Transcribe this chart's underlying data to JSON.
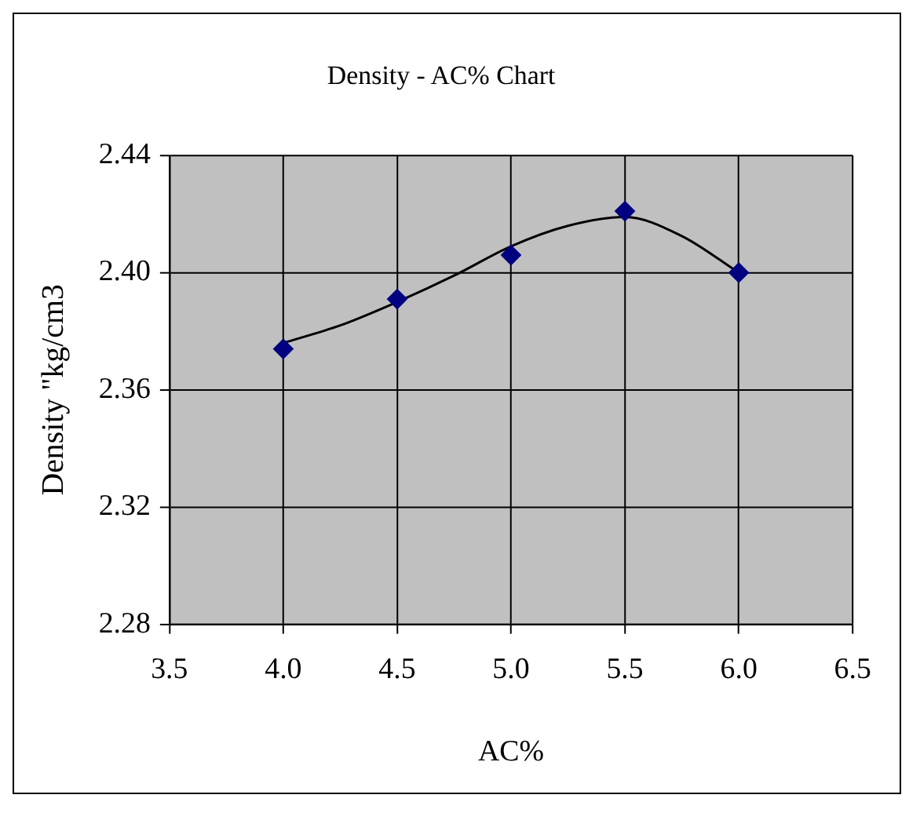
{
  "chart_data": {
    "type": "scatter",
    "title": "Density - AC% Chart",
    "xlabel": "AC%",
    "ylabel": "Density \"kg/cm3",
    "xlim": [
      3.5,
      6.5
    ],
    "xticks": [
      3.5,
      {
        "value": 4,
        "label": "4.0"
      },
      4.5,
      {
        "value": 5,
        "label": "5.0"
      },
      5.5,
      {
        "value": 6,
        "label": "6.0"
      },
      6.5
    ],
    "ylim": [
      2.28,
      2.44
    ],
    "yticks": [
      2.28,
      2.32,
      2.36,
      {
        "value": 2.4,
        "label": "2.40"
      },
      2.44
    ],
    "grid": true,
    "legend": false,
    "marker": "diamond",
    "series": [
      {
        "type": "scatter",
        "color": "#000080",
        "x": [
          4,
          4.5,
          5,
          5.5,
          6
        ],
        "values": [
          2.374,
          2.391,
          2.406,
          2.421,
          2.4
        ]
      },
      {
        "type": "line",
        "color": "#000000",
        "marker": "none",
        "line_style": "solid",
        "x": [
          4,
          4.25,
          4.5,
          4.75,
          5,
          5.25,
          5.5,
          5.75,
          6
        ],
        "values": [
          2.376,
          2.382,
          2.39,
          2.399,
          2.409,
          2.416,
          2.419,
          2.4125,
          2.4
        ]
      }
    ]
  }
}
